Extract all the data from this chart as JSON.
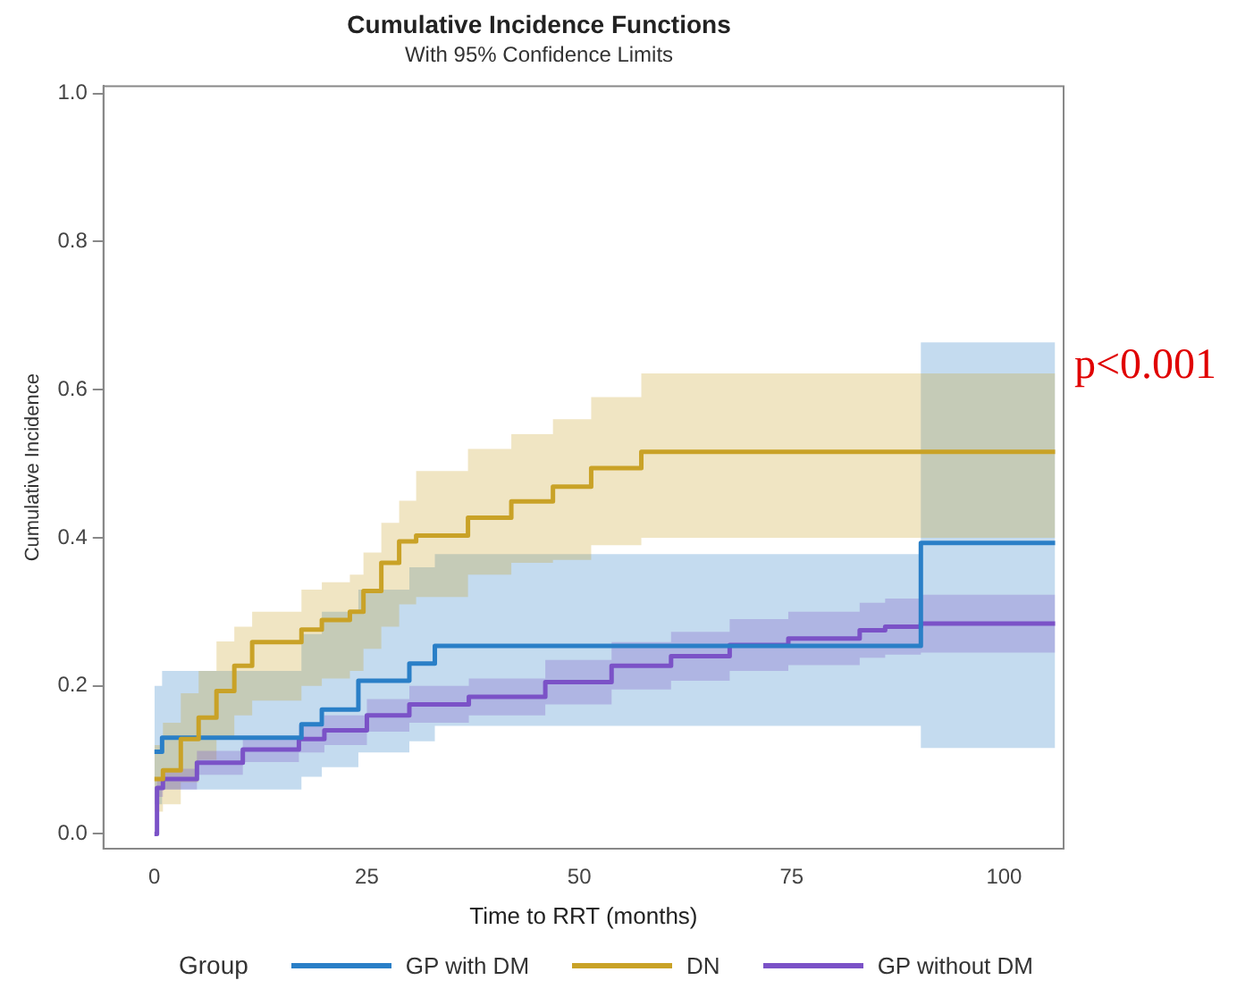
{
  "chart_data": {
    "type": "step",
    "title": "Cumulative Incidence Functions",
    "subtitle": "With 95% Confidence Limits",
    "xlabel": "Time to RRT (months)",
    "ylabel": "Cumulative Incidence",
    "legend_title": "Group",
    "legend": "bottom",
    "grid": false,
    "annotations": [
      "p<0.001"
    ],
    "xlim": [
      -6,
      107
    ],
    "xticks": [
      0,
      25,
      50,
      75,
      100
    ],
    "ylim": [
      -0.02,
      1.01
    ],
    "yticks": [
      {
        "value": 0,
        "label": "0.0"
      },
      {
        "value": 0.2,
        "label": "0.2"
      },
      {
        "value": 0.4,
        "label": "0.4"
      },
      {
        "value": 0.6,
        "label": "0.6"
      },
      {
        "value": 0.8,
        "label": "0.8"
      },
      {
        "value": 1,
        "label": "1.0"
      }
    ],
    "series": [
      {
        "name": "GP with DM",
        "color": "#2a7fc7",
        "x": [
          0,
          0.9,
          17.3,
          19.7,
          24,
          30,
          33,
          90.2,
          106
        ],
        "values": [
          0.111,
          0.13,
          0.148,
          0.168,
          0.207,
          0.23,
          0.254,
          0.393,
          0.393
        ],
        "lower": [
          0.04,
          0.06,
          0.077,
          0.09,
          0.11,
          0.125,
          0.146,
          0.116,
          0.116
        ],
        "upper": [
          0.2,
          0.22,
          0.27,
          0.3,
          0.33,
          0.36,
          0.378,
          0.664,
          0.664
        ]
      },
      {
        "name": "DN",
        "color": "#c9a227",
        "x": [
          0,
          1,
          3.1,
          5.2,
          7.3,
          9.4,
          11.5,
          17.3,
          19.7,
          23,
          24.6,
          26.7,
          28.8,
          30.8,
          36.9,
          42,
          46.9,
          51.4,
          57.3,
          106
        ],
        "values": [
          0.074,
          0.086,
          0.128,
          0.157,
          0.193,
          0.227,
          0.259,
          0.276,
          0.289,
          0.3,
          0.328,
          0.366,
          0.395,
          0.403,
          0.427,
          0.449,
          0.469,
          0.494,
          0.516,
          0.516
        ],
        "lower": [
          0.03,
          0.04,
          0.07,
          0.1,
          0.13,
          0.16,
          0.18,
          0.2,
          0.21,
          0.22,
          0.25,
          0.28,
          0.31,
          0.32,
          0.35,
          0.366,
          0.37,
          0.39,
          0.4,
          0.4
        ],
        "upper": [
          0.12,
          0.15,
          0.19,
          0.22,
          0.26,
          0.28,
          0.3,
          0.33,
          0.34,
          0.35,
          0.38,
          0.42,
          0.45,
          0.49,
          0.52,
          0.54,
          0.56,
          0.59,
          0.622,
          0.622
        ]
      },
      {
        "name": "GP without DM",
        "color": "#7b52c7",
        "x": [
          0,
          0.3,
          1,
          5,
          10.4,
          17,
          20,
          25,
          30,
          37,
          46,
          53.8,
          60.8,
          67.7,
          74.6,
          83,
          86,
          90.2,
          106
        ],
        "values": [
          0,
          0.062,
          0.074,
          0.096,
          0.114,
          0.128,
          0.14,
          0.16,
          0.175,
          0.185,
          0.205,
          0.227,
          0.24,
          0.255,
          0.264,
          0.275,
          0.28,
          0.284,
          0.284
        ],
        "lower": [
          0,
          0.05,
          0.06,
          0.08,
          0.097,
          0.11,
          0.12,
          0.138,
          0.15,
          0.16,
          0.175,
          0.195,
          0.207,
          0.22,
          0.228,
          0.238,
          0.242,
          0.245,
          0.245
        ],
        "upper": [
          0,
          0.075,
          0.088,
          0.112,
          0.132,
          0.147,
          0.16,
          0.182,
          0.2,
          0.21,
          0.235,
          0.259,
          0.273,
          0.29,
          0.3,
          0.312,
          0.318,
          0.323,
          0.323
        ]
      }
    ]
  }
}
